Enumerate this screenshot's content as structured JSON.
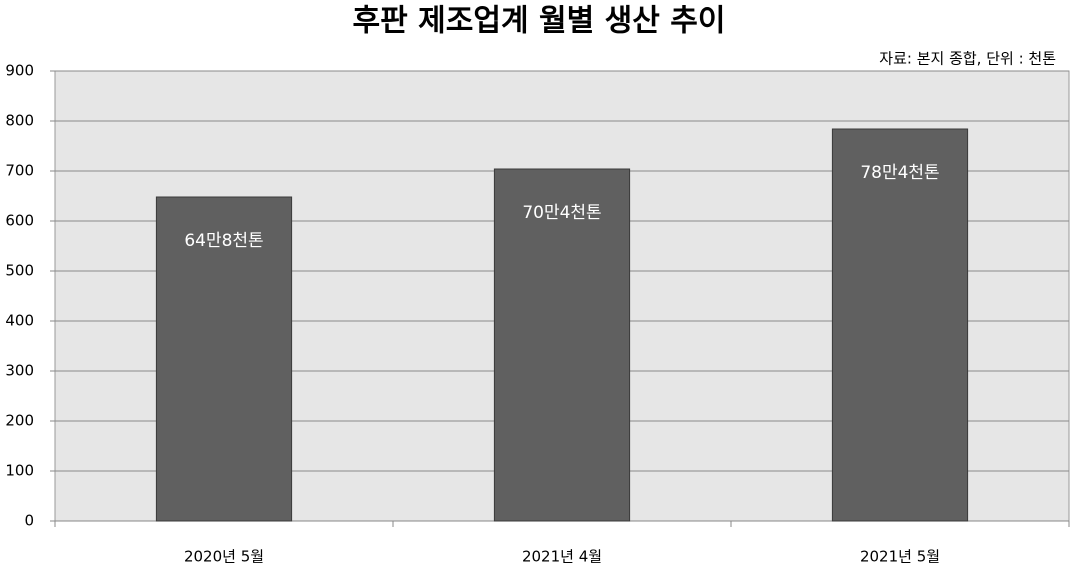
{
  "chart_data": {
    "type": "bar",
    "title": "후판 제조업계 월별 생산 추이",
    "subtitle": "자료: 본지 종합, 단위 : 천톤",
    "categories": [
      "2020년 5월",
      "2021년 4월",
      "2021년 5월"
    ],
    "values": [
      648,
      704,
      784
    ],
    "value_labels": [
      "64만8천톤",
      "70만4천톤",
      "78만4천톤"
    ],
    "color": "#606060",
    "ylim": [
      0,
      900
    ],
    "yticks": [
      0,
      100,
      200,
      300,
      400,
      500,
      600,
      700,
      800,
      900
    ],
    "grid": true
  }
}
